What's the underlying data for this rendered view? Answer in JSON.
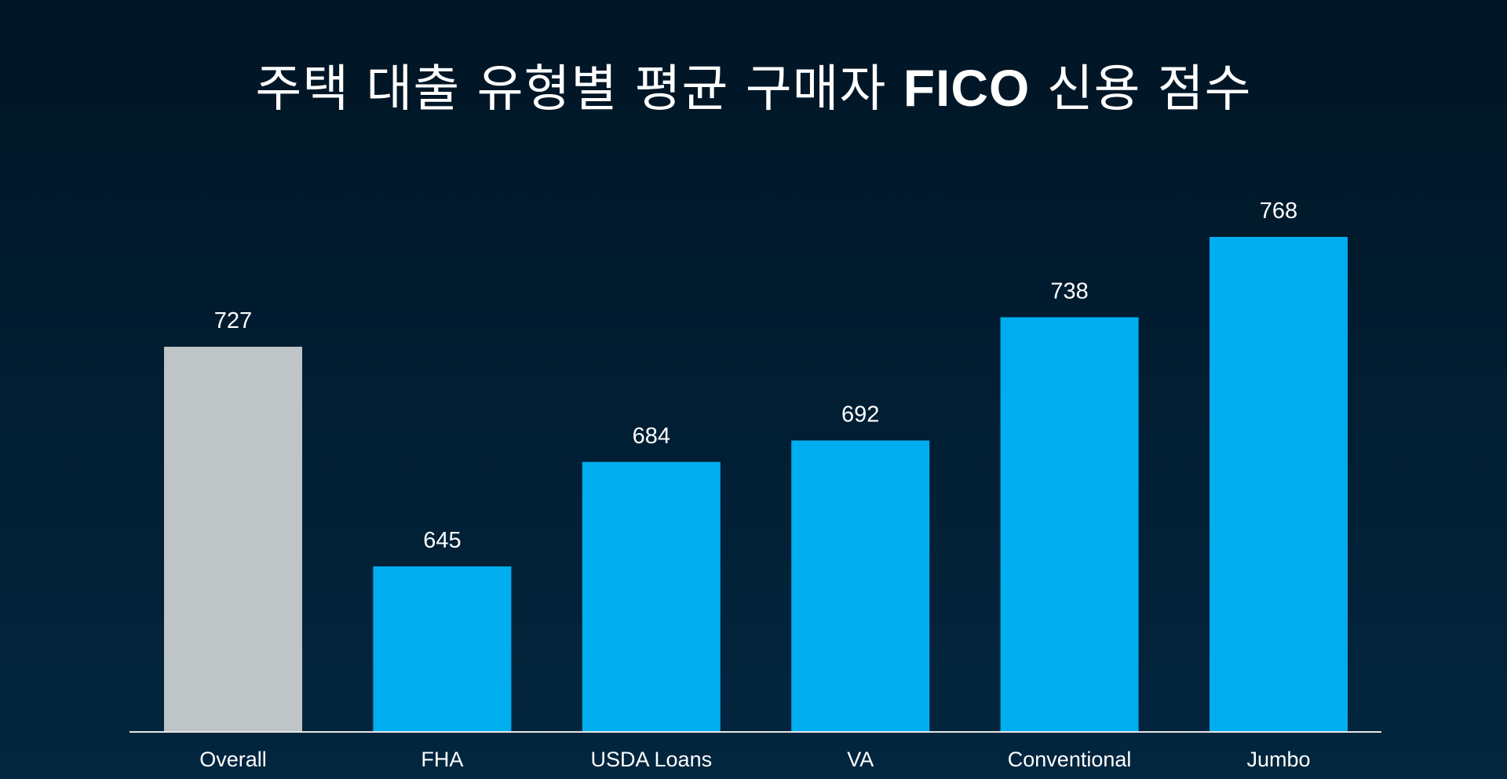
{
  "title": {
    "part1": "주택 대출 유형별 평균 구매자",
    "part2": "FICO",
    "part3": "신용 점수"
  },
  "colors": {
    "background": "#011d31",
    "highlight_bar": "#bfc4c6",
    "bar": "#00aeef",
    "axis": "#e6e6e6",
    "text": "#ffffff"
  },
  "chart_data": {
    "type": "bar",
    "categories": [
      "Overall",
      "FHA",
      "USDA Loans",
      "VA",
      "Conventional",
      "Jumbo"
    ],
    "values": [
      727,
      645,
      684,
      692,
      738,
      768
    ],
    "highlight": [
      "Overall"
    ],
    "data_labels": true,
    "grid": false,
    "legend": "none",
    "xlabel": "",
    "ylabel": "",
    "ylim": [
      400,
      800
    ]
  }
}
